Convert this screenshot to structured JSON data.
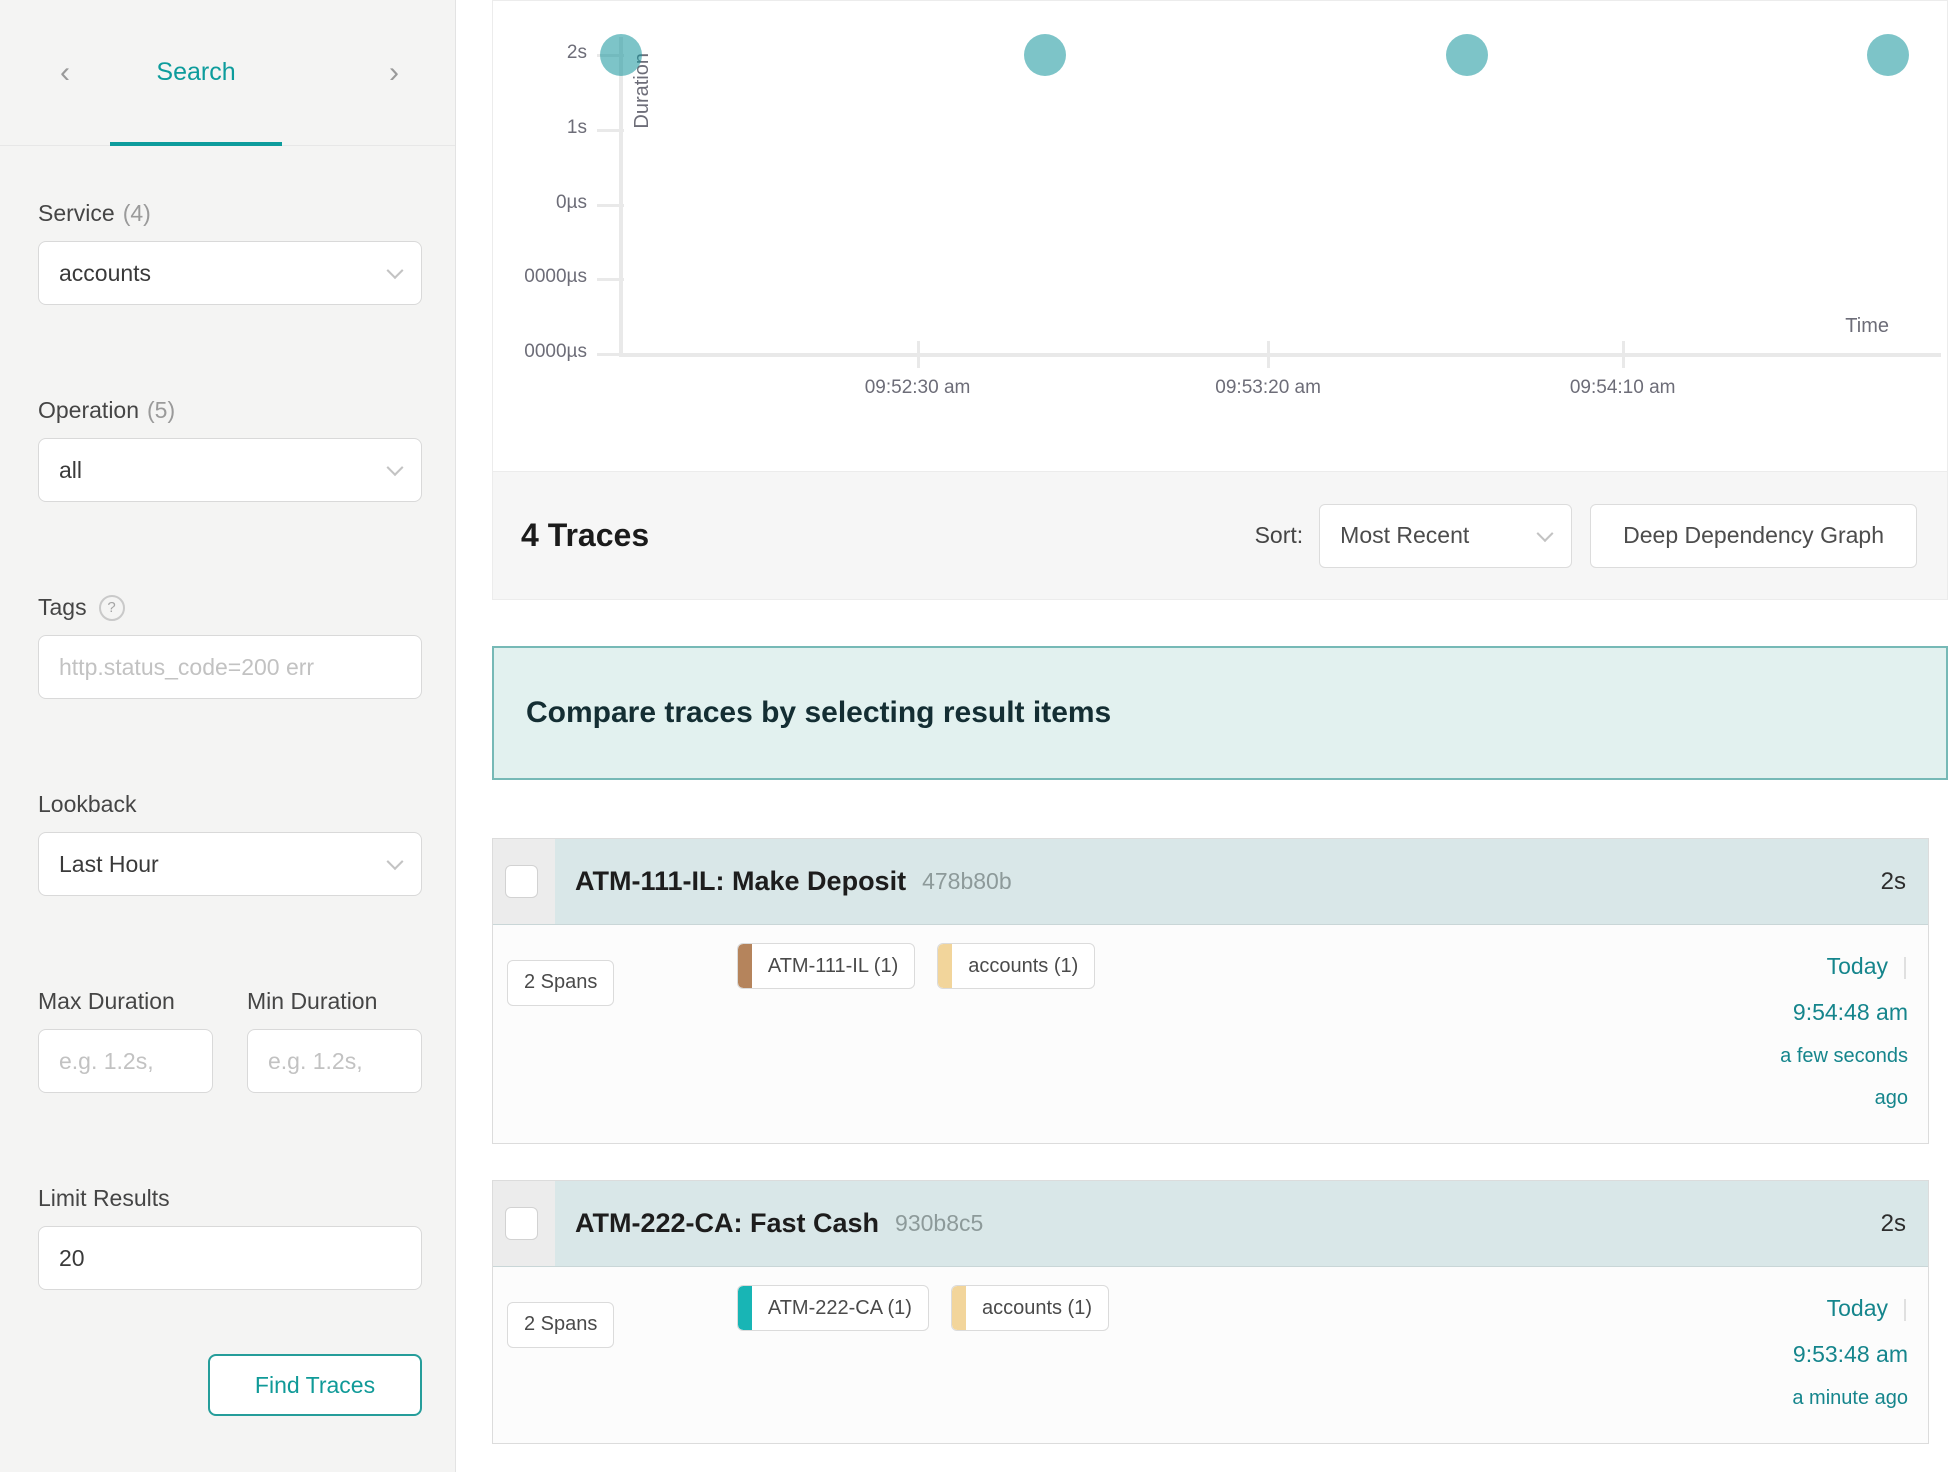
{
  "colors": {
    "accent_teal": "#0d9c9c",
    "link_teal": "#15858c",
    "scatter_point": "rgba(18, 147, 154, 0.55)",
    "banner_bg": "#e2f1ef",
    "banner_border": "#76b9b6",
    "card_header_bg": "#d9e7e8"
  },
  "sidebar": {
    "nav": {
      "prev_icon": "‹",
      "tab_label": "Search",
      "next_icon": "›"
    },
    "service": {
      "label": "Service",
      "count": "(4)",
      "value": "accounts"
    },
    "operation": {
      "label": "Operation",
      "count": "(5)",
      "value": "all"
    },
    "tags": {
      "label": "Tags",
      "help_icon": "?",
      "placeholder": "http.status_code=200 err"
    },
    "lookback": {
      "label": "Lookback",
      "value": "Last Hour"
    },
    "max_duration": {
      "label": "Max Duration",
      "placeholder": "e.g. 1.2s,"
    },
    "min_duration": {
      "label": "Min Duration",
      "placeholder": "e.g. 1.2s,"
    },
    "limit_results": {
      "label": "Limit Results",
      "value": "20"
    },
    "find_traces_button": "Find Traces"
  },
  "chart_data": {
    "type": "scatter",
    "title": "",
    "xlabel": "Time",
    "ylabel": "Duration",
    "y_tick_labels": [
      "2s",
      "1s",
      "0µs",
      "0000µs",
      "0000µs"
    ],
    "x_ticks": [
      {
        "label": "09:52:30 am",
        "x_pct": 22.5
      },
      {
        "label": "09:53:20 am",
        "x_pct": 49.1
      },
      {
        "label": "09:54:10 am",
        "x_pct": 76.0
      }
    ],
    "points": [
      {
        "time": "9:51:48 am",
        "duration": "2s",
        "x_pct": 0
      },
      {
        "time": "9:52:48 am",
        "duration": "2s",
        "x_pct": 32.2
      },
      {
        "time": "9:53:48 am",
        "duration": "2s",
        "x_pct": 64.2
      },
      {
        "time": "9:54:48 am",
        "duration": "2s",
        "x_pct": 96.1
      }
    ],
    "point_color": "rgba(18, 147, 154, 0.55)",
    "legend": "none",
    "grid": "ticks-only"
  },
  "results_bar": {
    "count": "4 Traces",
    "sort_label": "Sort:",
    "sort_value": "Most Recent",
    "deep_dependency_button": "Deep Dependency Graph"
  },
  "compare_banner": {
    "message": "Compare traces by selecting result items"
  },
  "traces": [
    {
      "title": "ATM-111-IL: Make Deposit",
      "trace_id": "478b80b",
      "duration": "2s",
      "spans_badge": "2 Spans",
      "service_tags": [
        {
          "label": "ATM-111-IL (1)",
          "color": "#b5845c"
        },
        {
          "label": "accounts (1)",
          "color": "#f2d59b"
        }
      ],
      "date": "Today",
      "separator": "|",
      "time": "9:54:48 am",
      "relative_time": "a few seconds ago"
    },
    {
      "title": "ATM-222-CA: Fast Cash",
      "trace_id": "930b8c5",
      "duration": "2s",
      "spans_badge": "2 Spans",
      "service_tags": [
        {
          "label": "ATM-222-CA (1)",
          "color": "#18b5b5"
        },
        {
          "label": "accounts (1)",
          "color": "#f2d59b"
        }
      ],
      "date": "Today",
      "separator": "|",
      "time": "9:53:48 am",
      "relative_time": "a minute ago"
    }
  ]
}
